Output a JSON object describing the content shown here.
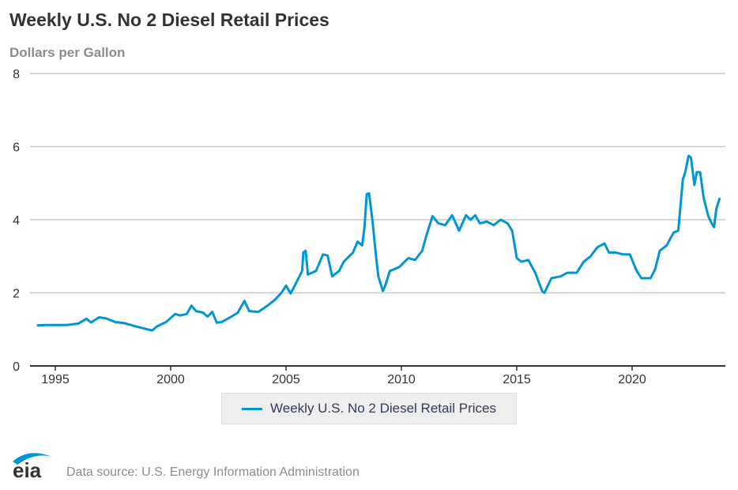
{
  "chart_data": {
    "type": "line",
    "title": "Weekly U.S. No 2 Diesel Retail Prices",
    "ylabel": "Dollars per Gallon",
    "xlabel": "",
    "xlim": [
      1994.0,
      2024.0
    ],
    "ylim": [
      0,
      8
    ],
    "yticks": [
      "0",
      "2",
      "4",
      "6",
      "8"
    ],
    "xticks": [
      "1995",
      "2000",
      "2005",
      "2010",
      "2015",
      "2020"
    ],
    "grid": true,
    "legend_placement": "bottom",
    "color": "#0096d6",
    "series": [
      {
        "name": "Weekly U.S. No 2 Diesel Retail Prices",
        "x": [
          1994.2,
          1994.6,
          1995.0,
          1995.5,
          1996.0,
          1996.35,
          1996.55,
          1996.9,
          1997.2,
          1997.6,
          1998.0,
          1998.5,
          1999.0,
          1999.2,
          1999.4,
          1999.8,
          2000.2,
          2000.4,
          2000.7,
          2000.9,
          2001.1,
          2001.4,
          2001.6,
          2001.8,
          2002.0,
          2002.2,
          2002.5,
          2002.9,
          2003.2,
          2003.4,
          2003.8,
          2004.2,
          2004.5,
          2004.8,
          2005.0,
          2005.2,
          2005.5,
          2005.7,
          2005.75,
          2005.85,
          2005.95,
          2006.3,
          2006.6,
          2006.8,
          2007.0,
          2007.3,
          2007.5,
          2007.9,
          2008.1,
          2008.3,
          2008.4,
          2008.5,
          2008.6,
          2008.75,
          2008.9,
          2009.0,
          2009.2,
          2009.3,
          2009.5,
          2009.9,
          2010.3,
          2010.6,
          2010.9,
          2011.1,
          2011.35,
          2011.6,
          2011.9,
          2012.2,
          2012.5,
          2012.8,
          2013.0,
          2013.2,
          2013.4,
          2013.7,
          2014.0,
          2014.3,
          2014.6,
          2014.8,
          2015.0,
          2015.2,
          2015.5,
          2015.8,
          2016.1,
          2016.2,
          2016.5,
          2016.9,
          2017.2,
          2017.6,
          2017.9,
          2018.2,
          2018.5,
          2018.8,
          2019.0,
          2019.3,
          2019.6,
          2019.9,
          2020.2,
          2020.4,
          2020.8,
          2021.0,
          2021.2,
          2021.5,
          2021.8,
          2022.0,
          2022.2,
          2022.3,
          2022.45,
          2022.55,
          2022.7,
          2022.8,
          2022.95,
          2023.1,
          2023.3,
          2023.45,
          2023.55,
          2023.65,
          2023.8
        ],
        "values": [
          1.11,
          1.12,
          1.12,
          1.12,
          1.16,
          1.29,
          1.19,
          1.33,
          1.3,
          1.2,
          1.17,
          1.08,
          1.0,
          0.97,
          1.08,
          1.2,
          1.42,
          1.38,
          1.42,
          1.65,
          1.5,
          1.46,
          1.35,
          1.48,
          1.18,
          1.2,
          1.3,
          1.45,
          1.78,
          1.5,
          1.48,
          1.65,
          1.8,
          2.0,
          2.2,
          1.98,
          2.35,
          2.6,
          3.1,
          3.15,
          2.5,
          2.6,
          3.05,
          3.02,
          2.45,
          2.6,
          2.85,
          3.1,
          3.4,
          3.3,
          3.8,
          4.7,
          4.72,
          3.95,
          3.0,
          2.45,
          2.05,
          2.2,
          2.6,
          2.7,
          2.95,
          2.9,
          3.15,
          3.6,
          4.1,
          3.9,
          3.85,
          4.12,
          3.7,
          4.12,
          4.0,
          4.12,
          3.9,
          3.95,
          3.85,
          4.0,
          3.9,
          3.7,
          2.95,
          2.85,
          2.9,
          2.55,
          2.05,
          2.0,
          2.4,
          2.45,
          2.55,
          2.55,
          2.85,
          3.0,
          3.25,
          3.35,
          3.1,
          3.1,
          3.05,
          3.05,
          2.6,
          2.4,
          2.4,
          2.65,
          3.15,
          3.3,
          3.65,
          3.7,
          5.1,
          5.3,
          5.75,
          5.7,
          4.95,
          5.3,
          5.3,
          4.6,
          4.1,
          3.9,
          3.8,
          4.3,
          4.6
        ]
      }
    ]
  },
  "footer": {
    "source": "Data source: U.S. Energy Information Administration",
    "logo_text": "eia"
  }
}
